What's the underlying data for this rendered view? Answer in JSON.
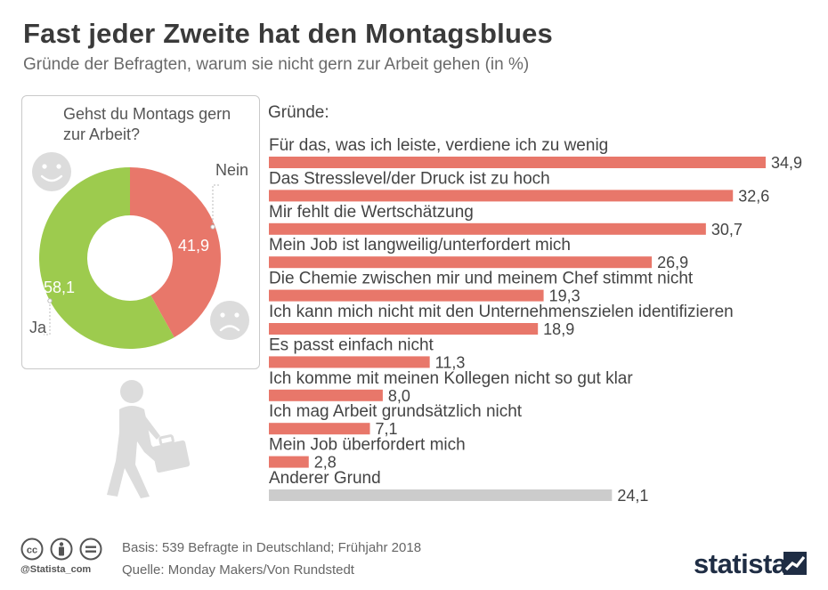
{
  "header": {
    "title": "Fast jeder Zweite hat den Montagsblues",
    "subtitle": "Gründe der Befragten, warum sie nicht gern zur Arbeit gehen (in %)"
  },
  "chart_data": [
    {
      "type": "pie",
      "title": "Gehst du Montags gern zur Arbeit?",
      "donut": true,
      "slices": [
        {
          "label": "Nein",
          "value": 41.9,
          "value_text": "41,9",
          "color": "#e8776a"
        },
        {
          "label": "Ja",
          "value": 58.1,
          "value_text": "58,1",
          "color": "#9dcb4e"
        }
      ]
    },
    {
      "type": "bar",
      "orientation": "horizontal",
      "title": "Gründe:",
      "xlim": [
        0,
        34.9
      ],
      "categories": [
        "Für das, was ich leiste, verdiene ich zu wenig",
        "Das Stresslevel/der Druck ist zu hoch",
        "Mir fehlt die Wertschätzung",
        "Mein Job ist langweilig/unterfordert mich",
        "Die Chemie zwischen mir und meinem Chef stimmt nicht",
        "Ich kann mich nicht mit den Unternehmenszielen identifizieren",
        "Es passt einfach nicht",
        "Ich komme mit meinen Kollegen nicht so gut klar",
        "Ich mag Arbeit grundsätzlich nicht",
        "Mein Job überfordert mich",
        "Anderer Grund"
      ],
      "values": [
        34.9,
        32.6,
        30.7,
        26.9,
        19.3,
        18.9,
        11.3,
        8.0,
        7.1,
        2.8,
        24.1
      ],
      "value_texts": [
        "34,9",
        "32,6",
        "30,7",
        "26,9",
        "19,3",
        "18,9",
        "11,3",
        "8,0",
        "7,1",
        "2,8",
        "24,1"
      ],
      "colors": [
        "#e8776a",
        "#e8776a",
        "#e8776a",
        "#e8776a",
        "#e8776a",
        "#e8776a",
        "#e8776a",
        "#e8776a",
        "#e8776a",
        "#e8776a",
        "#cccccc"
      ]
    }
  ],
  "footer": {
    "basis": "Basis: 539 Befragte in Deutschland; Frühjahr 2018",
    "source": "Quelle: Monday Makers/Von Rundstedt",
    "handle": "@Statista_com",
    "brand": "statista",
    "license_icons": [
      "creative-commons-icon",
      "attribution-icon",
      "no-derivatives-icon"
    ]
  },
  "colors": {
    "accent_red": "#e8776a",
    "accent_green": "#9dcb4e",
    "neutral_gray": "#cccccc",
    "icon_gray": "#dcdcdc"
  }
}
